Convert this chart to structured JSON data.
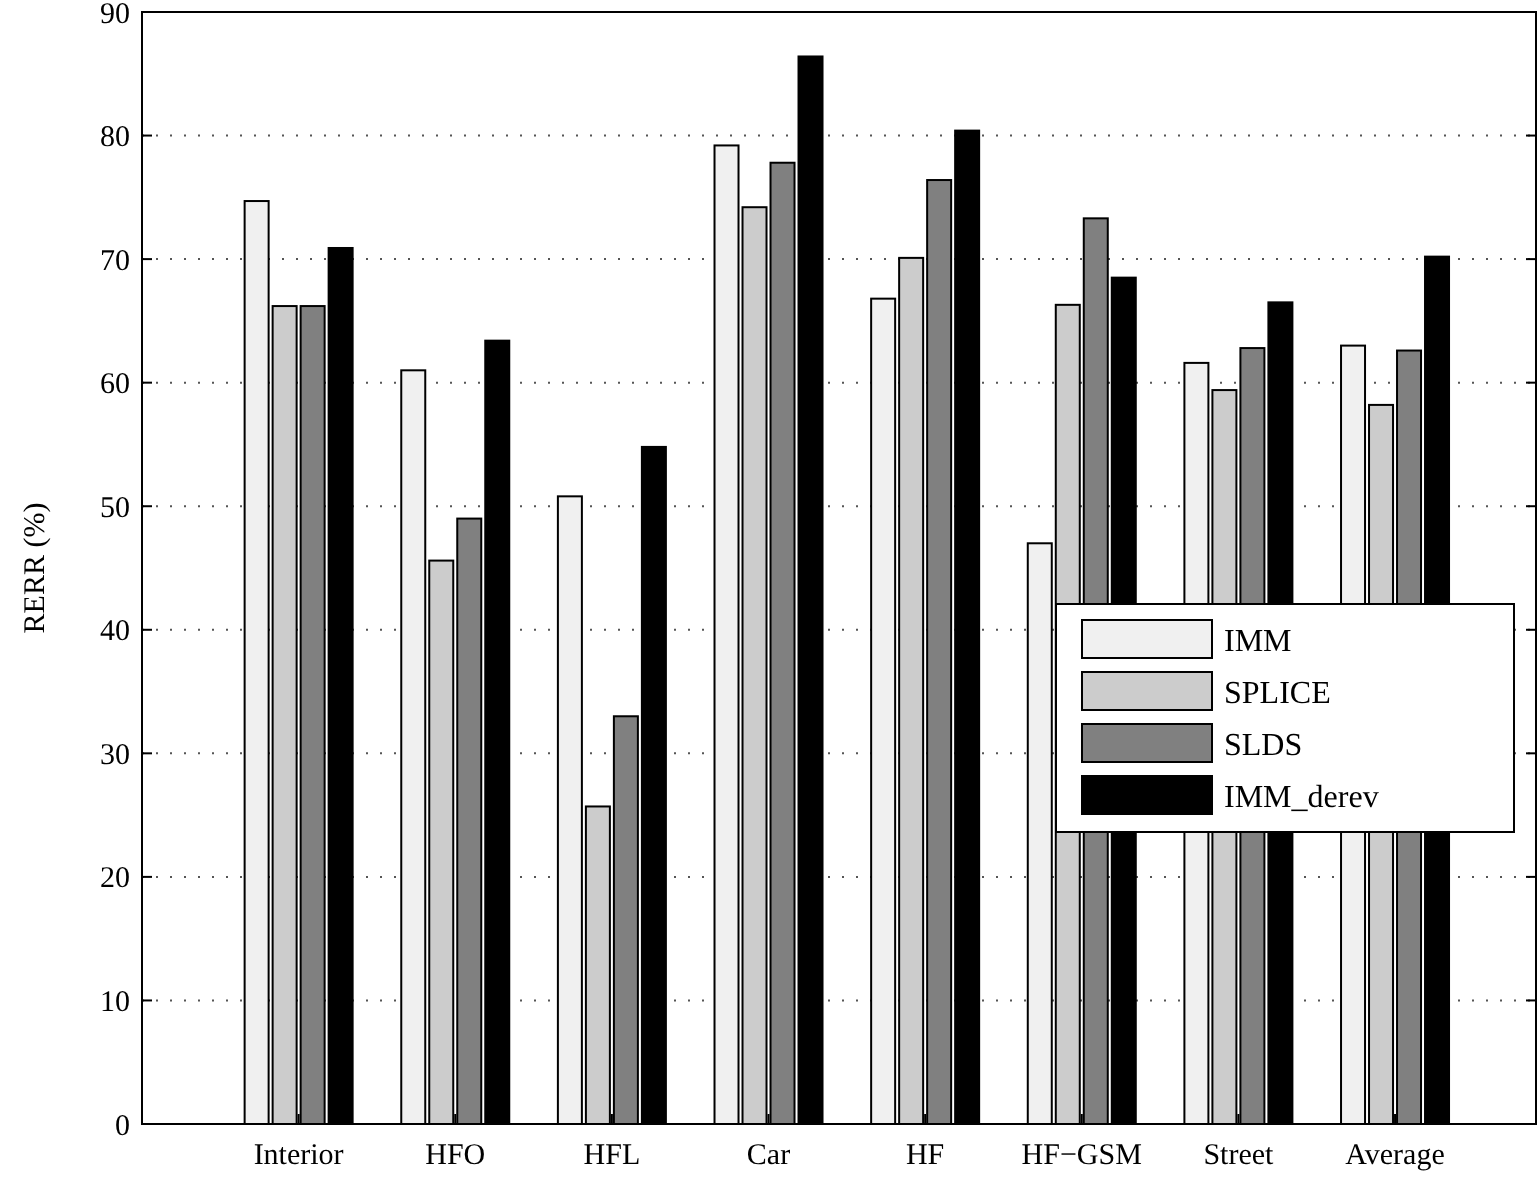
{
  "chart_data": {
    "type": "bar",
    "ylabel": "RERR (%)",
    "categories": [
      "Interior",
      "HFO",
      "HFL",
      "Car",
      "HF",
      "HF−GSM",
      "Street",
      "Average"
    ],
    "series": [
      {
        "name": "IMM",
        "color": "#f0f0f0",
        "values": [
          74.7,
          61,
          50.8,
          79.2,
          66.8,
          47,
          61.6,
          63
        ]
      },
      {
        "name": "SPLICE",
        "color": "#cccccc",
        "values": [
          66.2,
          45.6,
          25.7,
          74.2,
          70.1,
          66.3,
          59.4,
          58.2
        ]
      },
      {
        "name": "SLDS",
        "color": "#808080",
        "values": [
          66.2,
          49,
          33,
          77.8,
          76.4,
          73.3,
          62.8,
          62.6
        ]
      },
      {
        "name": "IMM_derev",
        "color": "#000000",
        "values": [
          70.9,
          63.4,
          54.8,
          86.4,
          80.4,
          68.5,
          66.5,
          70.2
        ]
      }
    ],
    "ylim": [
      0,
      90
    ],
    "yticks": [
      0,
      10,
      20,
      30,
      40,
      50,
      60,
      70,
      80,
      90
    ],
    "grid": "y",
    "legend": "right"
  }
}
